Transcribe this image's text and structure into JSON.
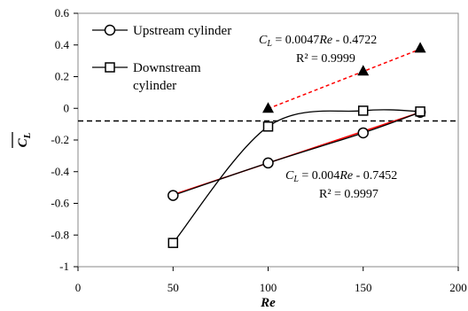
{
  "chart_data": {
    "type": "line",
    "xlabel": "Re",
    "ylabel": "C_L (mean)",
    "xlim": [
      0,
      200
    ],
    "ylim": [
      -1,
      0.6
    ],
    "x_ticks": [
      "0",
      "50",
      "100",
      "150",
      "200"
    ],
    "y_ticks": [
      "0.6",
      "0.4",
      "0.2",
      "0",
      "-0.2",
      "-0.4",
      "-0.6",
      "-0.8",
      "-1"
    ],
    "grid": false,
    "legend_position": "top-left",
    "series": [
      {
        "name": "Upstream cylinder",
        "marker": "circle",
        "x": [
          50,
          100,
          150,
          180
        ],
        "y": [
          -0.55,
          -0.345,
          -0.155,
          -0.025
        ],
        "color": "#000000"
      },
      {
        "name": "Downstream cylinder",
        "marker": "square",
        "x": [
          50,
          100,
          150,
          180
        ],
        "y": [
          -0.85,
          -0.115,
          -0.015,
          -0.02
        ],
        "color": "#000000"
      },
      {
        "marker": "triangle",
        "x": [
          100,
          150,
          180
        ],
        "y": [
          0.0,
          0.235,
          0.38
        ],
        "color": "#000000"
      }
    ],
    "fit_lines": [
      {
        "slope": 0.0047,
        "intercept": -0.4722,
        "x_range": [
          100,
          180
        ],
        "color": "#ff0000",
        "dashed": true
      },
      {
        "slope": 0.004,
        "intercept": -0.7452,
        "x_range": [
          50,
          180
        ],
        "color": "#ff0000",
        "dashed": false
      }
    ],
    "reference_line": {
      "y": -0.08,
      "dashed": true,
      "color": "#000000"
    },
    "annotations": [
      {
        "eq_var": "C",
        "eq_sub": "L",
        "eq_mid": " = 0.0047",
        "eq_var2": "Re",
        "eq_tail": " - 0.4722",
        "r2": "R² = 0.9999"
      },
      {
        "eq_var": "C",
        "eq_sub": "L",
        "eq_mid": " = 0.004",
        "eq_var2": "Re",
        "eq_tail": " - 0.7452",
        "r2": "R² = 0.9997"
      }
    ],
    "legend": [
      {
        "label_lines": [
          "Upstream cylinder"
        ]
      },
      {
        "label_lines": [
          "Downstream",
          "cylinder"
        ]
      }
    ]
  }
}
